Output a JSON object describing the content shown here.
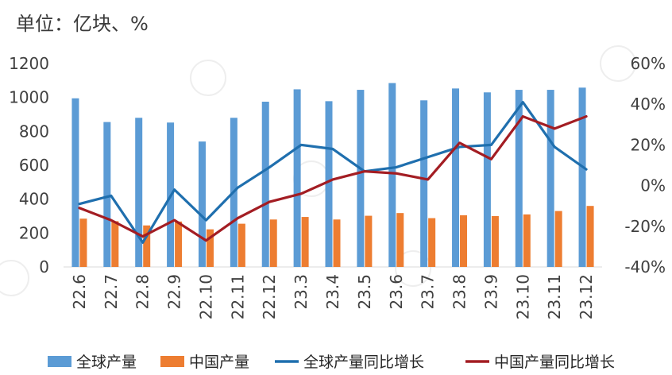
{
  "unit_label": "单位：亿块、%",
  "chart_data": {
    "type": "bar",
    "title": "",
    "categories": [
      "22.6",
      "22.7",
      "22.8",
      "22.9",
      "22.10",
      "22.11",
      "22.12",
      "23.3",
      "23.4",
      "23.5",
      "23.6",
      "23.7",
      "23.8",
      "23.9",
      "23.10",
      "23.11",
      "23.12"
    ],
    "y_left": {
      "range": [
        0,
        1200
      ],
      "ticks": [
        "0",
        "200",
        "400",
        "600",
        "800",
        "1000",
        "1200"
      ]
    },
    "y_right": {
      "range": [
        -40,
        60
      ],
      "ticks": [
        "-40%",
        "-20%",
        "0%",
        "20%",
        "40%",
        "60%"
      ]
    },
    "grid": false,
    "legend": "bottom",
    "series": [
      {
        "name": "全球产量",
        "kind": "bar",
        "axis": "left",
        "color": "#5b9bd5",
        "values": [
          995,
          855,
          880,
          852,
          740,
          880,
          975,
          1048,
          978,
          1045,
          1085,
          983,
          1053,
          1030,
          1045,
          1045,
          1058
        ]
      },
      {
        "name": "中国产量",
        "kind": "bar",
        "axis": "left",
        "color": "#ed7d31",
        "values": [
          285,
          270,
          245,
          268,
          222,
          255,
          280,
          295,
          280,
          302,
          318,
          288,
          305,
          300,
          310,
          330,
          360
        ]
      },
      {
        "name": "全球产量同比增长",
        "kind": "line",
        "axis": "right",
        "color": "#1f6fae",
        "values": [
          -9,
          -5,
          -28,
          -2,
          -17,
          -1,
          9,
          20,
          18,
          7,
          9,
          14,
          19,
          20,
          41,
          19,
          8
        ]
      },
      {
        "name": "中国产量同比增长",
        "kind": "line",
        "axis": "right",
        "color": "#a31d23",
        "values": [
          -11,
          -17,
          -25,
          -17,
          -27,
          -16,
          -8,
          -4,
          3,
          7,
          6,
          3,
          21,
          13,
          34,
          28,
          34
        ]
      }
    ]
  }
}
